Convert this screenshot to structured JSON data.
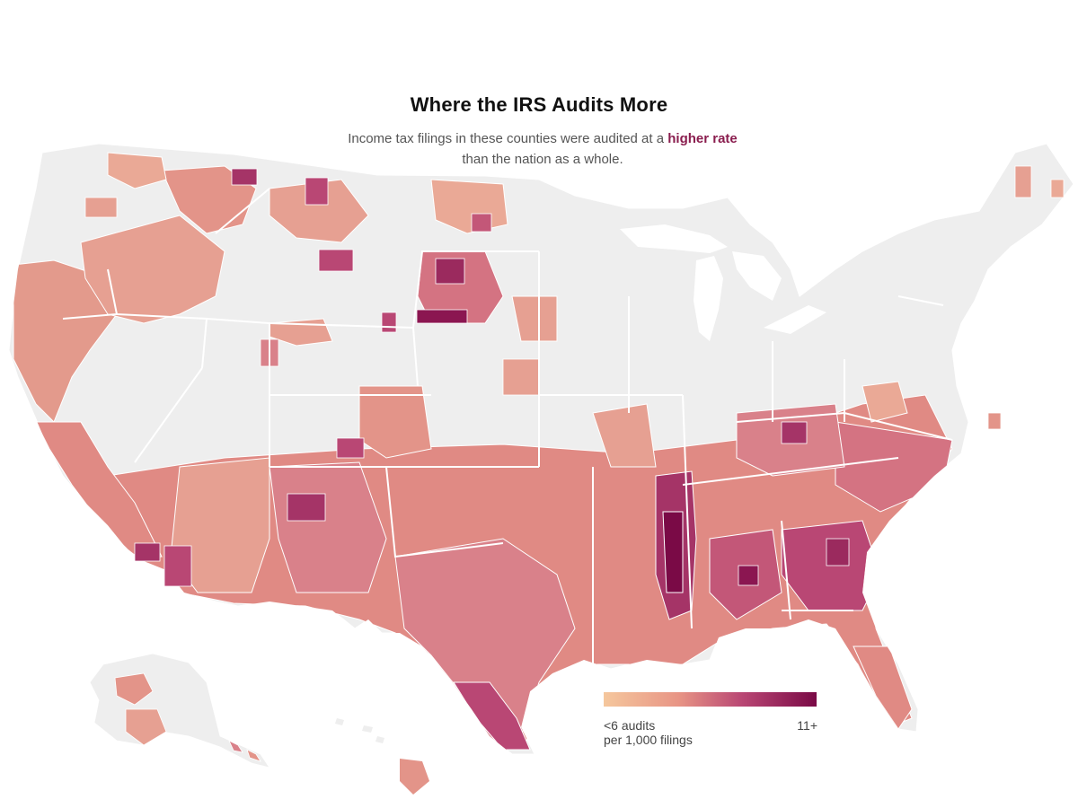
{
  "title": "Where the IRS Audits More",
  "subtitle": {
    "before": "Income tax filings in these counties were audited at a ",
    "highlight": "higher rate",
    "after": "than the nation as a whole."
  },
  "legend": {
    "min_label_line1": "<6 audits",
    "min_label_line2": "per 1,000 filings",
    "max_label": "11+",
    "scale_colors": [
      "#f5c79d",
      "#e89585",
      "#cc5f7a",
      "#a53467",
      "#7a0a46"
    ],
    "base_color": "#eeeeee"
  },
  "colors": {
    "highlight": "#8a1d4e",
    "no_data": "#eeeeee",
    "border": "#ffffff"
  }
}
